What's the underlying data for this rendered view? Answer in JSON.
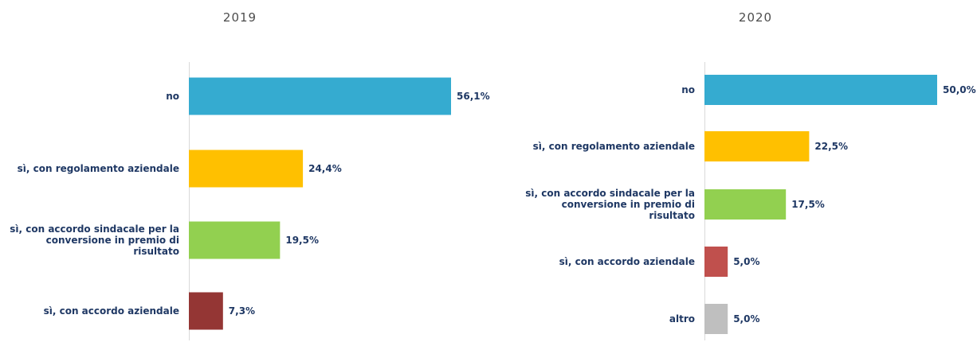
{
  "chart_data": [
    {
      "type": "bar",
      "orientation": "horizontal",
      "title": "2019",
      "categories": [
        "no",
        "sì, con regolamento aziendale",
        "sì, con accordo sindacale per la conversione in premio di risultato",
        "sì, con accordo aziendale"
      ],
      "category_lines": [
        [
          "no"
        ],
        [
          "sì, con regolamento aziendale"
        ],
        [
          "sì, con accordo sindacale per la",
          "conversione in premio di",
          "risultato"
        ],
        [
          "sì, con accordo aziendale"
        ]
      ],
      "values": [
        56.1,
        24.4,
        19.5,
        7.3
      ],
      "value_labels": [
        "56,1%",
        "24,4%",
        "19,5%",
        "7,3%"
      ],
      "colors": [
        "#35abd0",
        "#ffc000",
        "#92d050",
        "#943634"
      ],
      "xlim": [
        0,
        56.1
      ],
      "grid": false,
      "legend": "none"
    },
    {
      "type": "bar",
      "orientation": "horizontal",
      "title": "2020",
      "categories": [
        "no",
        "sì, con regolamento aziendale",
        "sì, con accordo sindacale per la conversione in premio di risultato",
        "sì, con accordo aziendale",
        "altro"
      ],
      "category_lines": [
        [
          "no"
        ],
        [
          "sì, con regolamento aziendale"
        ],
        [
          "sì, con accordo sindacale per la",
          "conversione in premio di",
          "risultato"
        ],
        [
          "sì, con accordo aziendale"
        ],
        [
          "altro"
        ]
      ],
      "values": [
        50.0,
        22.5,
        17.5,
        5.0,
        5.0
      ],
      "value_labels": [
        "50,0%",
        "22,5%",
        "17,5%",
        "5,0%",
        "5,0%"
      ],
      "colors": [
        "#35abd0",
        "#ffc000",
        "#92d050",
        "#c0504d",
        "#bfbfbf"
      ],
      "xlim": [
        0,
        50.0
      ],
      "grid": false,
      "legend": "none"
    }
  ]
}
